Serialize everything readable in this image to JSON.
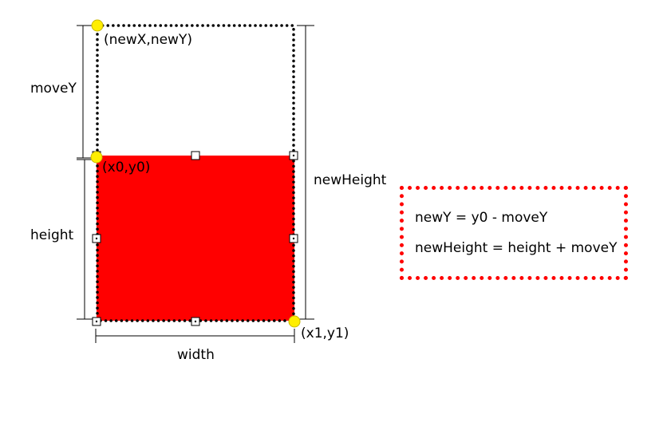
{
  "labels": {
    "new_point": "(newX,newY)",
    "origin_point": "(x0,y0)",
    "end_point": "(x1,y1)",
    "move_y": "moveY",
    "height": "height",
    "new_height": "newHeight",
    "width": "width"
  },
  "formulas": {
    "line1": "newY = y0 - moveY",
    "line2": "newHeight = height + moveY"
  },
  "colors": {
    "rect_fill": "#ff0000",
    "anchor_fill": "#ffee00",
    "formula_border": "#ff0000",
    "handle_fill": "#ffffff"
  }
}
